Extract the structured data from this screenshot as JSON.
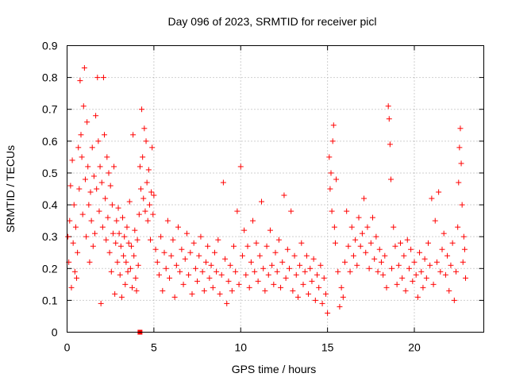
{
  "chart_data": {
    "type": "scatter",
    "title": "Day 096 of 2023, SRMTID for receiver picl",
    "xlabel": "GPS time / hours",
    "ylabel": "SRMTID / TECUs",
    "xlim": [
      0,
      24
    ],
    "ylim": [
      0,
      0.9
    ],
    "xticks": [
      0,
      5,
      10,
      15,
      20
    ],
    "yticks": [
      0,
      0.1,
      0.2,
      0.3,
      0.4,
      0.5,
      0.6,
      0.7,
      0.8,
      0.9
    ],
    "xtick_labels": [
      "0",
      "5",
      "10",
      "15",
      "20"
    ],
    "ytick_labels": [
      "0",
      "0.1",
      "0.2",
      "0.3",
      "0.4",
      "0.5",
      "0.6",
      "0.7",
      "0.8",
      "0.9"
    ],
    "grid": true,
    "marker": "+",
    "color": "#ff0000",
    "series": [
      {
        "name": "SRMTID",
        "points": [
          [
            0.05,
            0.3
          ],
          [
            0.1,
            0.22
          ],
          [
            0.15,
            0.35
          ],
          [
            0.2,
            0.46
          ],
          [
            0.25,
            0.14
          ],
          [
            0.3,
            0.54
          ],
          [
            0.35,
            0.28
          ],
          [
            0.4,
            0.4
          ],
          [
            0.45,
            0.19
          ],
          [
            0.5,
            0.33
          ],
          [
            0.55,
            0.17
          ],
          [
            0.6,
            0.25
          ],
          [
            0.65,
            0.58
          ],
          [
            0.7,
            0.45
          ],
          [
            0.75,
            0.79
          ],
          [
            0.8,
            0.62
          ],
          [
            0.85,
            0.55
          ],
          [
            0.9,
            0.37
          ],
          [
            0.95,
            0.71
          ],
          [
            1.0,
            0.83
          ],
          [
            1.05,
            0.48
          ],
          [
            1.1,
            0.3
          ],
          [
            1.15,
            0.66
          ],
          [
            1.2,
            0.52
          ],
          [
            1.25,
            0.4
          ],
          [
            1.3,
            0.22
          ],
          [
            1.35,
            0.44
          ],
          [
            1.4,
            0.35
          ],
          [
            1.45,
            0.58
          ],
          [
            1.5,
            0.27
          ],
          [
            1.55,
            0.49
          ],
          [
            1.6,
            0.31
          ],
          [
            1.65,
            0.68
          ],
          [
            1.7,
            0.45
          ],
          [
            1.75,
            0.8
          ],
          [
            1.8,
            0.6
          ],
          [
            1.85,
            0.38
          ],
          [
            1.9,
            0.52
          ],
          [
            1.95,
            0.09
          ],
          [
            2.0,
            0.47
          ],
          [
            2.05,
            0.33
          ],
          [
            2.1,
            0.8
          ],
          [
            2.15,
            0.62
          ],
          [
            2.2,
            0.42
          ],
          [
            2.25,
            0.29
          ],
          [
            2.3,
            0.55
          ],
          [
            2.35,
            0.36
          ],
          [
            2.4,
            0.5
          ],
          [
            2.45,
            0.25
          ],
          [
            2.5,
            0.46
          ],
          [
            2.55,
            0.19
          ],
          [
            2.6,
            0.4
          ],
          [
            2.65,
            0.31
          ],
          [
            2.7,
            0.52
          ],
          [
            2.75,
            0.12
          ],
          [
            2.8,
            0.28
          ],
          [
            2.85,
            0.35
          ],
          [
            2.9,
            0.22
          ],
          [
            2.95,
            0.39
          ],
          [
            3.0,
            0.31
          ],
          [
            3.05,
            0.18
          ],
          [
            3.1,
            0.27
          ],
          [
            3.15,
            0.11
          ],
          [
            3.2,
            0.36
          ],
          [
            3.25,
            0.24
          ],
          [
            3.3,
            0.3
          ],
          [
            3.35,
            0.15
          ],
          [
            3.4,
            0.22
          ],
          [
            3.45,
            0.33
          ],
          [
            3.5,
            0.19
          ],
          [
            3.55,
            0.28
          ],
          [
            3.6,
            0.41
          ],
          [
            3.65,
            0.2
          ],
          [
            3.7,
            0.27
          ],
          [
            3.75,
            0.14
          ],
          [
            3.8,
            0.62
          ],
          [
            3.85,
            0.24
          ],
          [
            3.9,
            0.32
          ],
          [
            3.95,
            0.17
          ],
          [
            4.0,
            0.13
          ],
          [
            4.05,
            0.29
          ],
          [
            4.1,
            0.21
          ],
          [
            4.15,
            0.37
          ],
          [
            4.2,
            0.52
          ],
          [
            4.25,
            0.45
          ],
          [
            4.3,
            0.7
          ],
          [
            4.35,
            0.55
          ],
          [
            4.4,
            0.42
          ],
          [
            4.45,
            0.64
          ],
          [
            4.5,
            0.38
          ],
          [
            4.55,
            0.6
          ],
          [
            4.6,
            0.47
          ],
          [
            4.65,
            0.35
          ],
          [
            4.7,
            0.51
          ],
          [
            4.75,
            0.4
          ],
          [
            4.8,
            0.29
          ],
          [
            4.85,
            0.44
          ],
          [
            4.9,
            0.58
          ],
          [
            4.95,
            0.37
          ],
          [
            5.0,
            0.43
          ],
          [
            5.1,
            0.26
          ],
          [
            5.2,
            0.22
          ],
          [
            5.3,
            0.18
          ],
          [
            5.4,
            0.3
          ],
          [
            5.5,
            0.13
          ],
          [
            5.6,
            0.25
          ],
          [
            5.7,
            0.2
          ],
          [
            5.8,
            0.35
          ],
          [
            5.9,
            0.17
          ],
          [
            6.0,
            0.24
          ],
          [
            6.1,
            0.29
          ],
          [
            6.2,
            0.11
          ],
          [
            6.3,
            0.21
          ],
          [
            6.4,
            0.33
          ],
          [
            6.5,
            0.19
          ],
          [
            6.6,
            0.26
          ],
          [
            6.7,
            0.15
          ],
          [
            6.8,
            0.23
          ],
          [
            6.9,
            0.31
          ],
          [
            7.0,
            0.18
          ],
          [
            7.1,
            0.25
          ],
          [
            7.2,
            0.12
          ],
          [
            7.3,
            0.28
          ],
          [
            7.4,
            0.2
          ],
          [
            7.5,
            0.16
          ],
          [
            7.6,
            0.24
          ],
          [
            7.7,
            0.3
          ],
          [
            7.8,
            0.19
          ],
          [
            7.9,
            0.13
          ],
          [
            8.0,
            0.22
          ],
          [
            8.1,
            0.27
          ],
          [
            8.2,
            0.17
          ],
          [
            8.3,
            0.21
          ],
          [
            8.4,
            0.14
          ],
          [
            8.5,
            0.25
          ],
          [
            8.6,
            0.19
          ],
          [
            8.7,
            0.29
          ],
          [
            8.8,
            0.12
          ],
          [
            8.9,
            0.18
          ],
          [
            9.0,
            0.47
          ],
          [
            9.1,
            0.23
          ],
          [
            9.2,
            0.09
          ],
          [
            9.3,
            0.16
          ],
          [
            9.4,
            0.21
          ],
          [
            9.5,
            0.13
          ],
          [
            9.6,
            0.27
          ],
          [
            9.7,
            0.19
          ],
          [
            9.8,
            0.38
          ],
          [
            9.9,
            0.15
          ],
          [
            10.0,
            0.52
          ],
          [
            10.1,
            0.24
          ],
          [
            10.2,
            0.32
          ],
          [
            10.3,
            0.18
          ],
          [
            10.4,
            0.27
          ],
          [
            10.5,
            0.14
          ],
          [
            10.6,
            0.22
          ],
          [
            10.7,
            0.35
          ],
          [
            10.8,
            0.19
          ],
          [
            10.9,
            0.28
          ],
          [
            11.0,
            0.16
          ],
          [
            11.1,
            0.24
          ],
          [
            11.2,
            0.41
          ],
          [
            11.3,
            0.2
          ],
          [
            11.4,
            0.13
          ],
          [
            11.5,
            0.27
          ],
          [
            11.6,
            0.18
          ],
          [
            11.7,
            0.32
          ],
          [
            11.8,
            0.21
          ],
          [
            11.9,
            0.15
          ],
          [
            12.0,
            0.25
          ],
          [
            12.1,
            0.19
          ],
          [
            12.2,
            0.29
          ],
          [
            12.3,
            0.14
          ],
          [
            12.4,
            0.22
          ],
          [
            12.5,
            0.43
          ],
          [
            12.6,
            0.17
          ],
          [
            12.7,
            0.26
          ],
          [
            12.8,
            0.2
          ],
          [
            12.9,
            0.38
          ],
          [
            13.0,
            0.13
          ],
          [
            13.1,
            0.24
          ],
          [
            13.2,
            0.18
          ],
          [
            13.3,
            0.11
          ],
          [
            13.4,
            0.21
          ],
          [
            13.5,
            0.28
          ],
          [
            13.6,
            0.15
          ],
          [
            13.7,
            0.19
          ],
          [
            13.8,
            0.24
          ],
          [
            13.9,
            0.12
          ],
          [
            14.0,
            0.2
          ],
          [
            14.1,
            0.16
          ],
          [
            14.2,
            0.23
          ],
          [
            14.3,
            0.1
          ],
          [
            14.4,
            0.18
          ],
          [
            14.5,
            0.14
          ],
          [
            14.6,
            0.21
          ],
          [
            14.7,
            0.09
          ],
          [
            14.8,
            0.17
          ],
          [
            14.9,
            0.12
          ],
          [
            15.0,
            0.06
          ],
          [
            15.1,
            0.55
          ],
          [
            15.15,
            0.45
          ],
          [
            15.2,
            0.5
          ],
          [
            15.25,
            0.38
          ],
          [
            15.3,
            0.6
          ],
          [
            15.35,
            0.65
          ],
          [
            15.4,
            0.33
          ],
          [
            15.45,
            0.28
          ],
          [
            15.5,
            0.48
          ],
          [
            15.6,
            0.19
          ],
          [
            15.7,
            0.08
          ],
          [
            15.8,
            0.14
          ],
          [
            15.9,
            0.11
          ],
          [
            16.0,
            0.22
          ],
          [
            16.1,
            0.38
          ],
          [
            16.2,
            0.27
          ],
          [
            16.3,
            0.19
          ],
          [
            16.4,
            0.33
          ],
          [
            16.5,
            0.24
          ],
          [
            16.6,
            0.29
          ],
          [
            16.7,
            0.21
          ],
          [
            16.8,
            0.36
          ],
          [
            16.9,
            0.27
          ],
          [
            17.0,
            0.31
          ],
          [
            17.1,
            0.42
          ],
          [
            17.2,
            0.25
          ],
          [
            17.3,
            0.33
          ],
          [
            17.4,
            0.2
          ],
          [
            17.5,
            0.28
          ],
          [
            17.6,
            0.36
          ],
          [
            17.7,
            0.23
          ],
          [
            17.8,
            0.3
          ],
          [
            17.9,
            0.19
          ],
          [
            18.0,
            0.26
          ],
          [
            18.1,
            0.22
          ],
          [
            18.2,
            0.18
          ],
          [
            18.3,
            0.24
          ],
          [
            18.4,
            0.14
          ],
          [
            18.5,
            0.71
          ],
          [
            18.55,
            0.67
          ],
          [
            18.6,
            0.59
          ],
          [
            18.65,
            0.48
          ],
          [
            18.7,
            0.2
          ],
          [
            18.8,
            0.33
          ],
          [
            18.9,
            0.27
          ],
          [
            19.0,
            0.15
          ],
          [
            19.1,
            0.21
          ],
          [
            19.2,
            0.28
          ],
          [
            19.3,
            0.17
          ],
          [
            19.4,
            0.24
          ],
          [
            19.5,
            0.13
          ],
          [
            19.6,
            0.29
          ],
          [
            19.7,
            0.2
          ],
          [
            19.8,
            0.26
          ],
          [
            19.9,
            0.16
          ],
          [
            20.0,
            0.22
          ],
          [
            20.1,
            0.18
          ],
          [
            20.2,
            0.11
          ],
          [
            20.3,
            0.25
          ],
          [
            20.4,
            0.19
          ],
          [
            20.5,
            0.14
          ],
          [
            20.6,
            0.23
          ],
          [
            20.7,
            0.17
          ],
          [
            20.8,
            0.28
          ],
          [
            20.9,
            0.21
          ],
          [
            21.0,
            0.42
          ],
          [
            21.1,
            0.15
          ],
          [
            21.2,
            0.35
          ],
          [
            21.3,
            0.22
          ],
          [
            21.4,
            0.44
          ],
          [
            21.5,
            0.19
          ],
          [
            21.6,
            0.26
          ],
          [
            21.7,
            0.31
          ],
          [
            21.8,
            0.18
          ],
          [
            21.9,
            0.24
          ],
          [
            22.0,
            0.13
          ],
          [
            22.1,
            0.21
          ],
          [
            22.2,
            0.28
          ],
          [
            22.3,
            0.1
          ],
          [
            22.4,
            0.19
          ],
          [
            22.5,
            0.33
          ],
          [
            22.55,
            0.47
          ],
          [
            22.6,
            0.58
          ],
          [
            22.65,
            0.64
          ],
          [
            22.7,
            0.53
          ],
          [
            22.75,
            0.4
          ],
          [
            22.8,
            0.22
          ],
          [
            22.85,
            0.3
          ],
          [
            22.9,
            0.26
          ],
          [
            22.95,
            0.17
          ]
        ]
      }
    ],
    "extra_marker": {
      "x": 4.2,
      "y": 0.0,
      "shape": "square"
    }
  }
}
